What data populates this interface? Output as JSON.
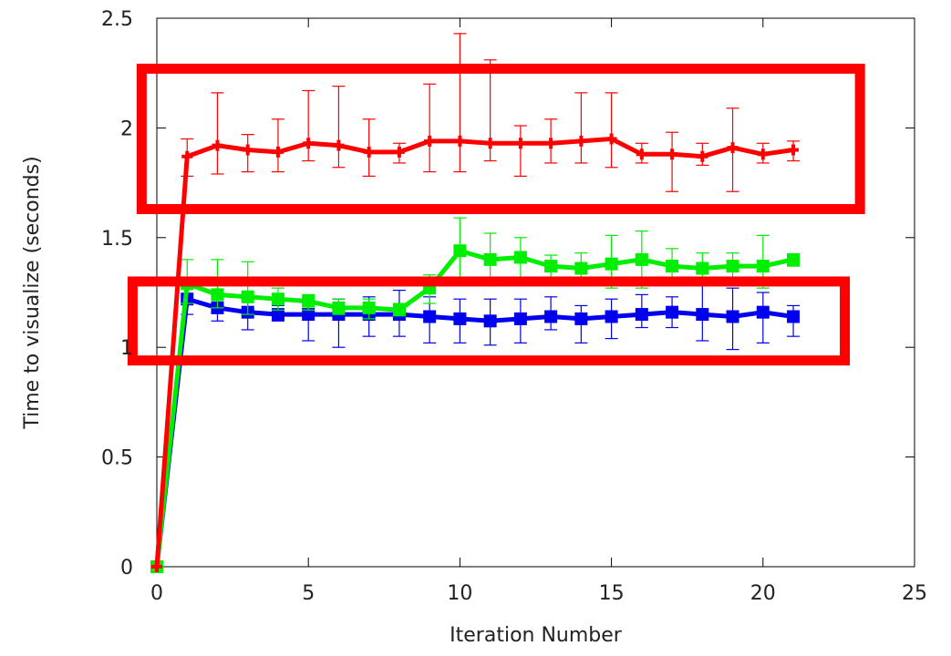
{
  "chart_data": {
    "type": "line",
    "title": "",
    "xlabel": "Iteration Number",
    "ylabel": "Time to visualize (seconds)",
    "xlim": [
      0,
      25
    ],
    "ylim": [
      0,
      2.5
    ],
    "xticks": [
      0,
      5,
      10,
      15,
      20,
      25
    ],
    "yticks": [
      0,
      0.5,
      1,
      1.5,
      2,
      2.5
    ],
    "grid": false,
    "legend": "none",
    "x": [
      0,
      1,
      2,
      3,
      4,
      5,
      6,
      7,
      8,
      9,
      10,
      11,
      12,
      13,
      14,
      15,
      16,
      17,
      18,
      19,
      20,
      21
    ],
    "series": [
      {
        "color": "#ff0000",
        "marker": "plus",
        "values": [
          0,
          1.87,
          1.92,
          1.9,
          1.89,
          1.93,
          1.92,
          1.89,
          1.89,
          1.94,
          1.94,
          1.93,
          1.93,
          1.93,
          1.94,
          1.95,
          1.88,
          1.88,
          1.87,
          1.91,
          1.88,
          1.9
        ],
        "err_low": [
          0,
          1.78,
          1.79,
          1.8,
          1.8,
          1.85,
          1.82,
          1.78,
          1.84,
          1.8,
          1.8,
          1.85,
          1.78,
          1.84,
          1.84,
          1.82,
          1.84,
          1.71,
          1.83,
          1.71,
          1.84,
          1.85
        ],
        "err_high": [
          0,
          1.95,
          2.16,
          1.97,
          2.04,
          2.17,
          2.19,
          2.04,
          1.93,
          2.2,
          2.43,
          2.31,
          2.01,
          2.04,
          2.16,
          2.16,
          1.93,
          1.98,
          1.93,
          2.09,
          1.93,
          1.94
        ]
      },
      {
        "color": "#00ee00",
        "marker": "square",
        "values": [
          0,
          1.29,
          1.24,
          1.23,
          1.22,
          1.21,
          1.18,
          1.18,
          1.17,
          1.27,
          1.44,
          1.4,
          1.41,
          1.37,
          1.36,
          1.38,
          1.4,
          1.37,
          1.36,
          1.37,
          1.37,
          1.4
        ],
        "err_low": [
          0,
          1.2,
          1.18,
          1.15,
          1.17,
          1.17,
          1.15,
          1.13,
          1.15,
          1.2,
          1.3,
          1.28,
          1.31,
          1.3,
          1.3,
          1.27,
          1.27,
          1.3,
          1.29,
          1.29,
          1.27,
          1.37
        ],
        "err_high": [
          0,
          1.4,
          1.4,
          1.39,
          1.27,
          1.24,
          1.22,
          1.22,
          1.2,
          1.33,
          1.59,
          1.52,
          1.5,
          1.42,
          1.43,
          1.51,
          1.53,
          1.45,
          1.43,
          1.43,
          1.51,
          1.42
        ]
      },
      {
        "color": "#0000ee",
        "marker": "square",
        "values": [
          0,
          1.22,
          1.18,
          1.16,
          1.15,
          1.15,
          1.15,
          1.15,
          1.15,
          1.14,
          1.13,
          1.12,
          1.13,
          1.14,
          1.13,
          1.14,
          1.15,
          1.16,
          1.15,
          1.14,
          1.16,
          1.14
        ],
        "err_low": [
          0,
          1.15,
          1.12,
          1.08,
          1.12,
          1.03,
          1.0,
          1.05,
          1.05,
          1.02,
          1.02,
          1.01,
          1.02,
          1.08,
          1.02,
          1.04,
          1.09,
          1.09,
          1.03,
          0.99,
          1.02,
          1.05
        ],
        "err_high": [
          0,
          1.28,
          1.23,
          1.22,
          1.19,
          1.22,
          1.22,
          1.23,
          1.26,
          1.23,
          1.22,
          1.22,
          1.22,
          1.23,
          1.19,
          1.22,
          1.24,
          1.23,
          1.28,
          1.27,
          1.25,
          1.19
        ]
      }
    ],
    "annotations": [
      {
        "type": "highlight-box",
        "color": "#ff0000",
        "x_range": [
          -0.5,
          23.2
        ],
        "y_range": [
          1.63,
          2.27
        ]
      },
      {
        "type": "highlight-box",
        "color": "#ff0000",
        "x_range": [
          -0.8,
          22.7
        ],
        "y_range": [
          0.94,
          1.3
        ]
      }
    ]
  }
}
